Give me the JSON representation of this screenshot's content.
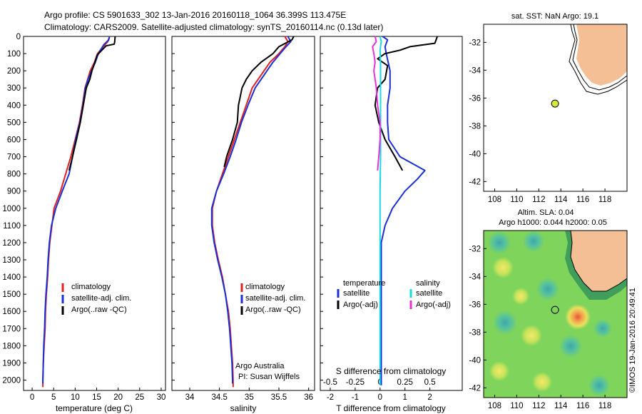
{
  "header": {
    "line1": "Argo profile: CS 5901633_302 13-Jan-2016 20160118_1064 36.399S 113.475E",
    "line2": "Climatology: CARS2009. Satellite-adjusted climatology: synTS_20160114.nc (0.13d later)"
  },
  "colors": {
    "climatology": "#e02020",
    "satellite": "#1a2fd6",
    "argo": "#000000",
    "sat_salinity": "#19d9e6",
    "argo_salinity": "#e633d9",
    "land": "#f5bf95",
    "float_marker": "#d8e83a"
  },
  "chart_data": [
    {
      "type": "line",
      "id": "temperature",
      "xlabel": "temperature (deg C)",
      "ylabel": "",
      "xlim": [
        -2,
        31
      ],
      "ylim": [
        0,
        2060
      ],
      "xticks": [
        0,
        5,
        10,
        15,
        20,
        25,
        30
      ],
      "yticks": [
        0,
        100,
        200,
        300,
        400,
        500,
        600,
        700,
        800,
        900,
        1000,
        1100,
        1200,
        1300,
        1400,
        1500,
        1600,
        1700,
        1800,
        1900,
        2000
      ],
      "legend": [
        "climatology",
        "satellite-adj. clim.",
        "Argo(..raw -QC)"
      ],
      "series": [
        {
          "name": "climatology",
          "color": "#e02020",
          "points": [
            [
              18,
              0
            ],
            [
              17.6,
              30
            ],
            [
              16.5,
              60
            ],
            [
              15.2,
              100
            ],
            [
              14.5,
              150
            ],
            [
              13.5,
              200
            ],
            [
              12.9,
              250
            ],
            [
              12.3,
              300
            ],
            [
              11.7,
              400
            ],
            [
              11,
              500
            ],
            [
              10,
              600
            ],
            [
              9,
              700
            ],
            [
              7.8,
              800
            ],
            [
              6.6,
              900
            ],
            [
              5.1,
              1000
            ],
            [
              4.6,
              1100
            ],
            [
              4.1,
              1200
            ],
            [
              3.8,
              1300
            ],
            [
              3.6,
              1400
            ],
            [
              3.3,
              1500
            ],
            [
              3.1,
              1600
            ],
            [
              3.0,
              1700
            ],
            [
              2.8,
              1800
            ],
            [
              2.6,
              1900
            ],
            [
              2.5,
              2000
            ],
            [
              2.5,
              2040
            ]
          ]
        },
        {
          "name": "satellite-adj. clim.",
          "color": "#1a2fd6",
          "points": [
            [
              18,
              0
            ],
            [
              17.8,
              20
            ],
            [
              16.6,
              50
            ],
            [
              15.4,
              100
            ],
            [
              14.7,
              150
            ],
            [
              13.8,
              200
            ],
            [
              13.0,
              250
            ],
            [
              12.4,
              300
            ],
            [
              11.8,
              400
            ],
            [
              11.1,
              500
            ],
            [
              10.1,
              600
            ],
            [
              9.4,
              700
            ],
            [
              8.6,
              800
            ],
            [
              7.0,
              900
            ],
            [
              5.5,
              1000
            ],
            [
              4.5,
              1100
            ],
            [
              4.0,
              1200
            ],
            [
              3.7,
              1300
            ],
            [
              3.5,
              1400
            ],
            [
              3.2,
              1500
            ],
            [
              3.0,
              1600
            ],
            [
              2.9,
              1700
            ],
            [
              2.7,
              1800
            ],
            [
              2.6,
              1900
            ],
            [
              2.5,
              2000
            ],
            [
              2.5,
              2020
            ]
          ]
        },
        {
          "name": "Argo(..raw -QC)",
          "color": "#000000",
          "points": [
            [
              19.3,
              0
            ],
            [
              19.2,
              30
            ],
            [
              19.1,
              45
            ],
            [
              17.2,
              55
            ],
            [
              16.2,
              80
            ],
            [
              15.1,
              110
            ],
            [
              14.6,
              150
            ],
            [
              13.9,
              200
            ],
            [
              13.4,
              250
            ],
            [
              12.6,
              300
            ],
            [
              11.9,
              400
            ],
            [
              11.2,
              500
            ],
            [
              10.3,
              600
            ],
            [
              9.4,
              700
            ],
            [
              8.6,
              780
            ]
          ]
        }
      ]
    },
    {
      "type": "line",
      "id": "salinity",
      "xlabel": "salinity",
      "xlim": [
        33.7,
        36.1
      ],
      "ylim": [
        0,
        2060
      ],
      "xticks": [
        34,
        34.5,
        35,
        35.5,
        36
      ],
      "legend": [
        "climatology",
        "satellite-adj. clim.",
        "Argo(..raw -QC)"
      ],
      "annotation": [
        "Argo Australia",
        "PI: Susan Wijffels"
      ],
      "series": [
        {
          "name": "climatology",
          "color": "#e02020",
          "points": [
            [
              35.6,
              0
            ],
            [
              35.65,
              30
            ],
            [
              35.6,
              60
            ],
            [
              35.5,
              100
            ],
            [
              35.35,
              150
            ],
            [
              35.25,
              200
            ],
            [
              35.15,
              250
            ],
            [
              35.05,
              300
            ],
            [
              34.95,
              400
            ],
            [
              34.85,
              500
            ],
            [
              34.75,
              600
            ],
            [
              34.65,
              700
            ],
            [
              34.55,
              800
            ],
            [
              34.45,
              900
            ],
            [
              34.38,
              1000
            ],
            [
              34.38,
              1100
            ],
            [
              34.42,
              1200
            ],
            [
              34.48,
              1300
            ],
            [
              34.55,
              1400
            ],
            [
              34.6,
              1500
            ],
            [
              34.65,
              1600
            ],
            [
              34.68,
              1700
            ],
            [
              34.7,
              1800
            ],
            [
              34.72,
              1900
            ],
            [
              34.73,
              2000
            ],
            [
              34.73,
              2040
            ]
          ]
        },
        {
          "name": "satellite-adj. clim.",
          "color": "#1a2fd6",
          "points": [
            [
              35.65,
              0
            ],
            [
              35.7,
              30
            ],
            [
              35.62,
              60
            ],
            [
              35.52,
              100
            ],
            [
              35.4,
              150
            ],
            [
              35.3,
              200
            ],
            [
              35.2,
              250
            ],
            [
              35.1,
              300
            ],
            [
              34.98,
              400
            ],
            [
              34.87,
              500
            ],
            [
              34.78,
              600
            ],
            [
              34.68,
              700
            ],
            [
              34.57,
              800
            ],
            [
              34.45,
              900
            ],
            [
              34.37,
              1000
            ],
            [
              34.37,
              1100
            ],
            [
              34.41,
              1200
            ],
            [
              34.47,
              1300
            ],
            [
              34.54,
              1400
            ],
            [
              34.6,
              1500
            ],
            [
              34.64,
              1600
            ],
            [
              34.67,
              1700
            ],
            [
              34.69,
              1800
            ],
            [
              34.71,
              1900
            ],
            [
              34.72,
              2000
            ],
            [
              34.72,
              2020
            ]
          ]
        },
        {
          "name": "Argo(..raw -QC)",
          "color": "#000000",
          "points": [
            [
              35.75,
              0
            ],
            [
              35.72,
              20
            ],
            [
              35.5,
              60
            ],
            [
              35.4,
              100
            ],
            [
              35.2,
              150
            ],
            [
              35.05,
              200
            ],
            [
              34.95,
              250
            ],
            [
              34.88,
              300
            ],
            [
              34.85,
              350
            ],
            [
              34.82,
              400
            ],
            [
              34.8,
              500
            ],
            [
              34.72,
              600
            ],
            [
              34.62,
              700
            ],
            [
              34.58,
              760
            ]
          ]
        }
      ]
    },
    {
      "type": "line",
      "id": "difference",
      "xlabel": "T difference from climatology",
      "top_label": "S difference from climatology",
      "xlim": [
        -2.4,
        3.3
      ],
      "ylim": [
        0,
        2060
      ],
      "xticks_bottom": [
        -2,
        -1,
        0,
        1,
        2
      ],
      "xticks_top": [
        "-0.5",
        "-0.25",
        "0",
        "0.25",
        "0.5"
      ],
      "legend_left_title": "temperature",
      "legend_right_title": "salinity",
      "legend": [
        "satellite",
        "Argo(-adj)",
        "satellite",
        "Argo(-adj)"
      ],
      "series": [
        {
          "name": "temperature satellite",
          "color": "#1a2fd6",
          "points": [
            [
              0.1,
              0
            ],
            [
              0.3,
              20
            ],
            [
              0.2,
              60
            ],
            [
              0.25,
              100
            ],
            [
              0.4,
              200
            ],
            [
              0.4,
              300
            ],
            [
              0.3,
              400
            ],
            [
              0.3,
              500
            ],
            [
              0.35,
              600
            ],
            [
              0.8,
              700
            ],
            [
              1.8,
              780
            ],
            [
              1.5,
              830
            ],
            [
              1.0,
              900
            ],
            [
              0.5,
              1000
            ],
            [
              0.2,
              1100
            ],
            [
              0.05,
              1200
            ],
            [
              0.05,
              1400
            ],
            [
              0.05,
              1600
            ],
            [
              0.05,
              1800
            ],
            [
              0.05,
              2000
            ],
            [
              0.05,
              2030
            ]
          ]
        },
        {
          "name": "temperature Argo(-adj)",
          "color": "#000000",
          "points": [
            [
              2.3,
              0
            ],
            [
              2.2,
              40
            ],
            [
              1.2,
              60
            ],
            [
              0.8,
              80
            ],
            [
              0.2,
              100
            ],
            [
              -0.1,
              130
            ],
            [
              0.3,
              170
            ],
            [
              0.2,
              250
            ],
            [
              -0.1,
              300
            ],
            [
              -0.2,
              400
            ],
            [
              -0.05,
              500
            ],
            [
              0.2,
              600
            ],
            [
              0.6,
              700
            ],
            [
              0.9,
              780
            ]
          ]
        },
        {
          "name": "salinity satellite",
          "color": "#19d9e6",
          "points": [
            [
              0.0,
              0
            ],
            [
              0.05,
              30
            ],
            [
              0.0,
              80
            ],
            [
              0.02,
              150
            ],
            [
              0.02,
              300
            ],
            [
              0.02,
              500
            ],
            [
              0.02,
              700
            ],
            [
              0.0,
              900
            ],
            [
              0.0,
              1100
            ],
            [
              0.0,
              1300
            ],
            [
              0.0,
              1500
            ],
            [
              0.0,
              1700
            ],
            [
              0.0,
              1900
            ],
            [
              0.0,
              2030
            ]
          ]
        },
        {
          "name": "salinity Argo(-adj)",
          "color": "#e633d9",
          "points": [
            [
              -0.2,
              0
            ],
            [
              -0.15,
              30
            ],
            [
              -0.3,
              60
            ],
            [
              -0.25,
              100
            ],
            [
              -0.2,
              150
            ],
            [
              -0.25,
              200
            ],
            [
              -0.15,
              300
            ],
            [
              -0.1,
              400
            ],
            [
              0.0,
              500
            ],
            [
              0.0,
              600
            ],
            [
              -0.05,
              700
            ],
            [
              -0.1,
              780
            ]
          ]
        }
      ]
    },
    {
      "type": "scatter",
      "id": "sst_map",
      "title": "sat. SST: NaN Argo: 19.1",
      "xlim": [
        107,
        120
      ],
      "ylim": [
        -42.7,
        -30.7
      ],
      "xticks": [
        108,
        110,
        112,
        114,
        116,
        118
      ],
      "yticks": [
        -32,
        -34,
        -36,
        -38,
        -40,
        -42
      ],
      "float": {
        "lon": 113.475,
        "lat": -36.399
      }
    },
    {
      "type": "heatmap",
      "id": "sla_map",
      "title": "Altim. SLA: 0.04",
      "subtitle": "Argo h1000: 0.044 h2000: 0.05",
      "xlim": [
        107,
        120
      ],
      "ylim": [
        -42.7,
        -30.7
      ],
      "xticks": [
        108,
        110,
        112,
        114,
        116,
        118
      ],
      "yticks": [
        -32,
        -34,
        -36,
        -38,
        -40,
        -42
      ],
      "float": {
        "lon": 113.475,
        "lat": -36.399
      }
    }
  ],
  "footer": {
    "credit": "©IMOS 19-Jan-2016 20:49:41"
  }
}
